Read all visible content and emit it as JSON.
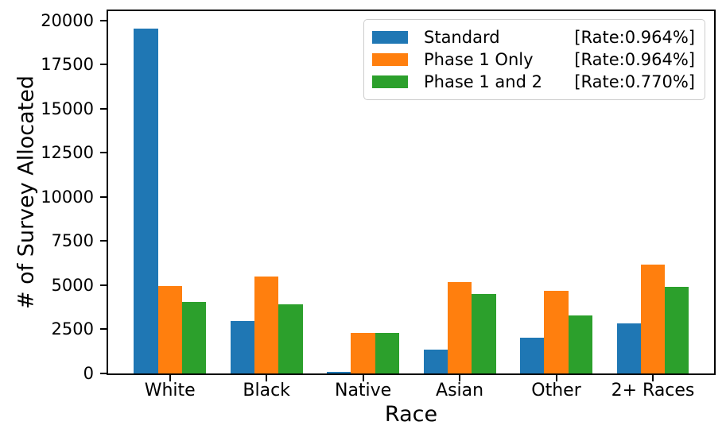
{
  "chart_data": {
    "type": "bar",
    "title": "",
    "xlabel": "Race",
    "ylabel": "# of Survey Allocated",
    "categories": [
      "White",
      "Black",
      "Native",
      "Asian",
      "Other",
      "2+ Races"
    ],
    "series": [
      {
        "name": "Standard",
        "rate_label": "[Rate:0.964%]",
        "color": "#1f77b4",
        "values": [
          19700,
          3000,
          100,
          1350,
          2050,
          2850
        ]
      },
      {
        "name": "Phase 1 Only",
        "rate_label": "[Rate:0.964%]",
        "color": "#ff7f0e",
        "values": [
          5000,
          5550,
          2300,
          5200,
          4700,
          6200
        ]
      },
      {
        "name": "Phase 1 and 2",
        "rate_label": "[Rate:0.770%]",
        "color": "#2ca02c",
        "values": [
          4100,
          3950,
          2330,
          4550,
          3300,
          4950
        ]
      }
    ],
    "y_ticks": [
      0,
      2500,
      5000,
      7500,
      10000,
      12500,
      15000,
      17500,
      20000
    ],
    "ylim": [
      0,
      20700
    ],
    "legend_position": "upper right",
    "grid": false
  }
}
